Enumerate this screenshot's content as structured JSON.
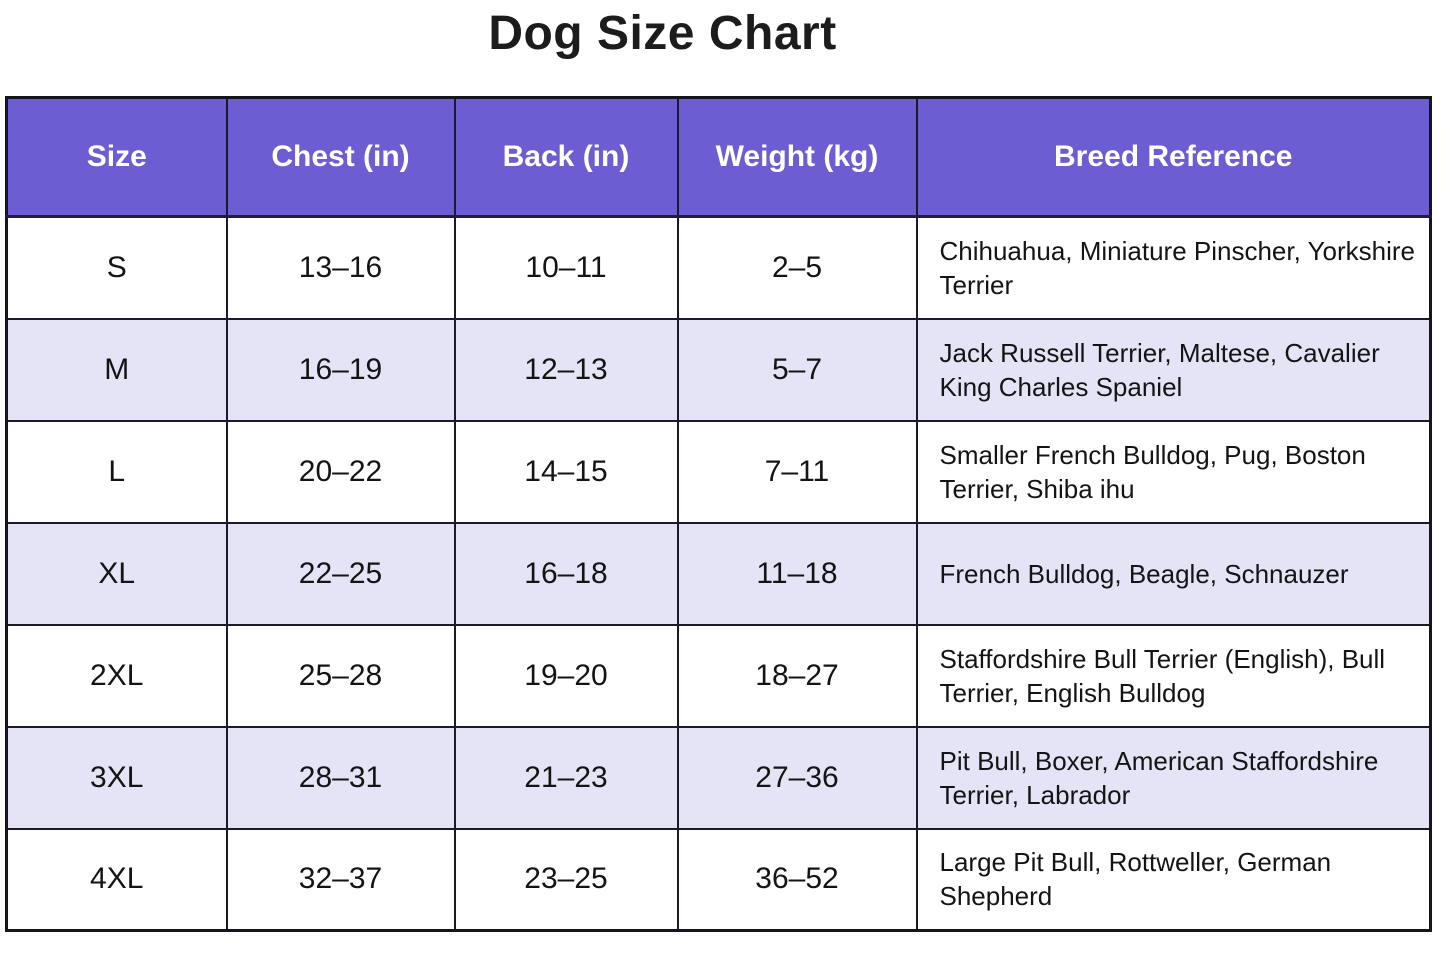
{
  "title": "Dog Size Chart",
  "chart_data": {
    "type": "table",
    "title": "Dog Size Chart",
    "columns": [
      "Size",
      "Chest (in)",
      "Back (in)",
      "Weight (kg)",
      "Breed Reference"
    ],
    "rows": [
      [
        "S",
        "13–16",
        "10–11",
        "2–5",
        "Chihuahua, Miniature Pinscher, Yorkshire Terrier"
      ],
      [
        "M",
        "16–19",
        "12–13",
        "5–7",
        "Jack Russell Terrier, Maltese, Cavalier King Charles Spaniel"
      ],
      [
        "L",
        "20–22",
        "14–15",
        "7–11",
        "Smaller French Bulldog, Pug, Boston Terrier, Shiba ihu"
      ],
      [
        "XL",
        "22–25",
        "16–18",
        "11–18",
        "French Bulldog, Beagle, Schnauzer"
      ],
      [
        "2XL",
        "25–28",
        "19–20",
        "18–27",
        "Staffordshire Bull Terrier (English), Bull Terrier, English Bulldog"
      ],
      [
        "3XL",
        "28–31",
        "21–23",
        "27–36",
        "Pit Bull, Boxer, American Staffordshire Terrier, Labrador"
      ],
      [
        "4XL",
        "32–37",
        "23–25",
        "36–52",
        "Large Pit Bull, Rottweller, German Shepherd"
      ]
    ]
  },
  "colors": {
    "header_bg": "#6c5ed2",
    "header_text": "#ffffff",
    "row_bg": "#ffffff",
    "row_alt_bg": "#e4e4f6",
    "border": "#1a1a2b",
    "title_text": "#1c1c1c",
    "body_text": "#141414"
  }
}
